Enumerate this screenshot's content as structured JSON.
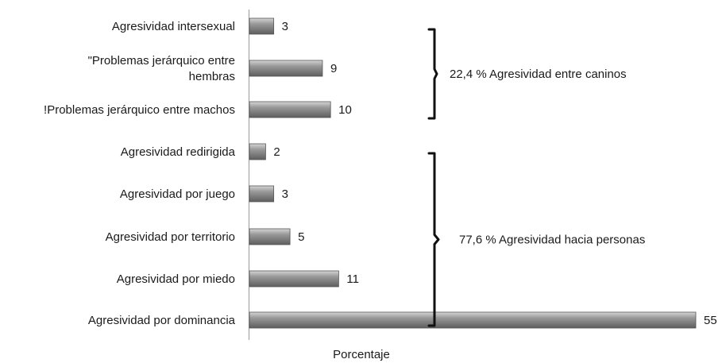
{
  "chart_data": {
    "type": "bar",
    "orientation": "horizontal",
    "categories": [
      [
        "Agresividad intersexual"
      ],
      [
        "\"Problemas jerárquico entre",
        "hembras"
      ],
      [
        "!Problemas jerárquico entre machos"
      ],
      [
        "Agresividad redirigida"
      ],
      [
        "Agresividad por juego"
      ],
      [
        "Agresividad por territorio"
      ],
      [
        "Agresividad por miedo"
      ],
      [
        "Agresividad por dominancia"
      ]
    ],
    "values": [
      3,
      9,
      10,
      2,
      3,
      5,
      11,
      55
    ],
    "xlabel": "Porcentaje",
    "xlim": [
      0,
      55
    ],
    "grid": false,
    "bar_color": "#7a7a7a",
    "groups": [
      {
        "label": "22,4 % Agresividad entre caninos",
        "from": 0,
        "to": 2
      },
      {
        "label": "77,6 % Agresividad  hacia personas",
        "from": 3,
        "to": 7
      }
    ]
  }
}
